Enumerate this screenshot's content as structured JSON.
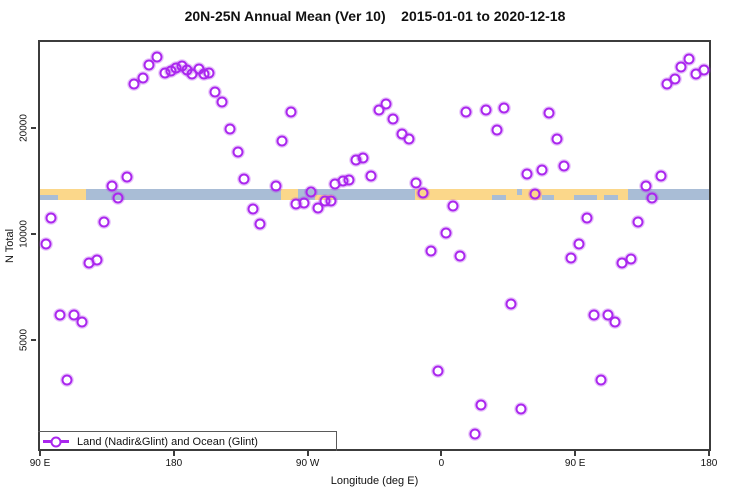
{
  "title": "20N-25N Annual Mean (Ver 10)    2015-01-01 to 2020-12-18",
  "chart_data": {
    "type": "scatter",
    "title": "20N-25N Annual Mean (Ver 10)    2015-01-01 to 2020-12-18",
    "xlabel": "Longitude (deg E)",
    "ylabel": "N Total",
    "x_scale": "linear-wrapped-longitude",
    "y_scale": "log",
    "x_range": [
      90,
      540
    ],
    "y_range": [
      2450,
      35200
    ],
    "x_axis_note": "longitude axis wraps eastward: 90E > 180 > 90W > 0 > 90E > 180; stored as unwrapped degrees 90-540",
    "x_ticks": [
      {
        "deg": 90,
        "label": "90 E"
      },
      {
        "deg": 180,
        "label": "180"
      },
      {
        "deg": 270,
        "label": "90 W"
      },
      {
        "deg": 360,
        "label": "0"
      },
      {
        "deg": 450,
        "label": "90 E"
      },
      {
        "deg": 540,
        "label": "180"
      }
    ],
    "y_ticks": [
      {
        "value": 5000,
        "label": "5000"
      },
      {
        "value": 10000,
        "label": "10000"
      },
      {
        "value": 20000,
        "label": "20000"
      }
    ],
    "grid": false,
    "legend": {
      "position": "bottom-left-inside",
      "label": "Land (Nadir&Glint) and Ocean (Glint)",
      "marker_color": "#aa26ee"
    },
    "point_color": "#aa26ee",
    "map_band": {
      "description": "land/ocean strip map of the 20N-25N latitude belt drawn across the plot",
      "value_range": [
        12470,
        13480
      ],
      "ocean_color": "#a9bdd6",
      "land_color": "#fbd78a",
      "land_full": [
        [
          90,
          121
        ],
        [
          251.8,
          263.8
        ],
        [
          342.1,
          485.8
        ]
      ],
      "land_bottom_half": [
        [
          275.2,
          287.2
        ]
      ],
      "ocean_bottom_half": [
        [
          90,
          102
        ],
        [
          394.2,
          403.6
        ],
        [
          427.7,
          435.7
        ],
        [
          449.1,
          464.5
        ],
        [
          469.1,
          479.1
        ]
      ],
      "ocean_top_half": [
        [
          411,
          414.3
        ]
      ]
    },
    "series": [
      {
        "name": "Land (Nadir&Glint) and Ocean (Glint)",
        "points": [
          [
            153.5,
            26800
          ],
          [
            159.5,
            27800
          ],
          [
            163.5,
            30300
          ],
          [
            168.9,
            31900
          ],
          [
            174.2,
            28700
          ],
          [
            178.3,
            29100
          ],
          [
            181.6,
            29700
          ],
          [
            185.6,
            30100
          ],
          [
            189.0,
            29300
          ],
          [
            192.3,
            28600
          ],
          [
            197.0,
            29500
          ],
          [
            200.3,
            28600
          ],
          [
            203.7,
            28800
          ],
          [
            207.7,
            25300
          ],
          [
            212.4,
            23800
          ],
          [
            217.7,
            19900
          ],
          [
            223.1,
            17100
          ],
          [
            227.1,
            14400
          ],
          [
            148.2,
            14500
          ],
          [
            138.1,
            13700
          ],
          [
            142.8,
            12700
          ],
          [
            233.1,
            11800
          ],
          [
            237.8,
            10700
          ],
          [
            97.4,
            11100
          ],
          [
            132.8,
            10800
          ],
          [
            94.0,
            9370
          ],
          [
            258.5,
            22200
          ],
          [
            253.1,
            18400
          ],
          [
            318.0,
            22600
          ],
          [
            322.7,
            23500
          ],
          [
            327.4,
            21300
          ],
          [
            333.4,
            19300
          ],
          [
            338.1,
            18700
          ],
          [
            302.6,
            16300
          ],
          [
            307.3,
            16500
          ],
          [
            312.7,
            14600
          ],
          [
            248.5,
            13700
          ],
          [
            272.5,
            13200
          ],
          [
            262.5,
            12200
          ],
          [
            267.8,
            12300
          ],
          [
            277.2,
            11900
          ],
          [
            281.9,
            12400
          ],
          [
            285.9,
            12400
          ],
          [
            288.6,
            13900
          ],
          [
            293.9,
            14200
          ],
          [
            297.9,
            14300
          ],
          [
            342.7,
            14000
          ],
          [
            347.4,
            13100
          ],
          [
            367.5,
            12000
          ],
          [
            376.8,
            22300
          ],
          [
            390.2,
            22600
          ],
          [
            362.8,
            10100
          ],
          [
            352.8,
            8960
          ],
          [
            372.8,
            8670
          ],
          [
            402.3,
            22900
          ],
          [
            397.6,
            19800
          ],
          [
            432.4,
            22100
          ],
          [
            437.7,
            18700
          ],
          [
            511.9,
            26800
          ],
          [
            517.3,
            27700
          ],
          [
            521.3,
            29900
          ],
          [
            526.6,
            31500
          ],
          [
            531.3,
            28600
          ],
          [
            536.7,
            29300
          ],
          [
            417.7,
            14800
          ],
          [
            427.7,
            15200
          ],
          [
            442.4,
            15600
          ],
          [
            423.0,
            13000
          ],
          [
            507.9,
            14600
          ],
          [
            497.9,
            13700
          ],
          [
            501.9,
            12700
          ],
          [
            457.8,
            11100
          ],
          [
            492.5,
            10800
          ],
          [
            452.4,
            9370
          ],
          [
            122.8,
            8290
          ],
          [
            128.1,
            8450
          ],
          [
            103.4,
            5880
          ],
          [
            112.7,
            5880
          ],
          [
            118.1,
            5620
          ],
          [
            108.1,
            3840
          ],
          [
            357.4,
            4090
          ],
          [
            386.9,
            3260
          ],
          [
            382.9,
            2700
          ],
          [
            447.1,
            8560
          ],
          [
            481.8,
            8290
          ],
          [
            487.8,
            8510
          ],
          [
            407.0,
            6350
          ],
          [
            462.4,
            5880
          ],
          [
            471.8,
            5880
          ],
          [
            477.1,
            5620
          ],
          [
            467.1,
            3840
          ],
          [
            413.7,
            3180
          ]
        ]
      }
    ]
  }
}
